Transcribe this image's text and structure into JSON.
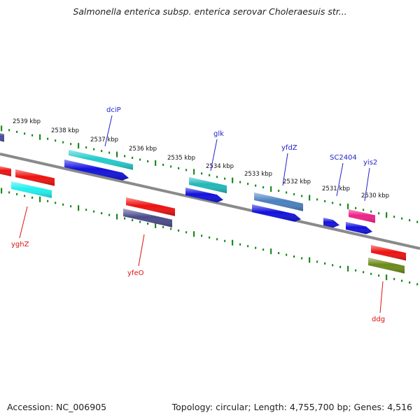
{
  "header": {
    "title": "Salmonella enterica subsp. enterica serovar Choleraesuis str..."
  },
  "footer": {
    "accession": "Accession: NC_006905",
    "topology": "Topology: circular; Length: 4,755,700 bp; Genes: 4,516"
  },
  "colors": {
    "backbone": "#8a8a8a",
    "tick_track": "#1f8a1f",
    "forward_label": "#2222cc",
    "reverse_label": "#dd1111"
  },
  "ruler": [
    {
      "label": "2539 kbp"
    },
    {
      "label": "2538 kbp"
    },
    {
      "label": "2537 kbp"
    },
    {
      "label": "2536 kbp"
    },
    {
      "label": "2535 kbp"
    },
    {
      "label": "2534 kbp"
    },
    {
      "label": "2533 kbp"
    },
    {
      "label": "2532 kbp"
    },
    {
      "label": "2531 kbp"
    },
    {
      "label": "2530 kbp"
    }
  ],
  "labels": {
    "forward": [
      {
        "name": "dciP"
      },
      {
        "name": "glk"
      },
      {
        "name": "yfdZ"
      },
      {
        "name": "SC2404"
      },
      {
        "name": "yis2"
      }
    ],
    "reverse": [
      {
        "name": "yghZ"
      },
      {
        "name": "yfeO"
      },
      {
        "name": "ddg"
      }
    ]
  },
  "features": [
    {
      "color": "#4a4a9a",
      "strand": "+"
    },
    {
      "color": "#22cccc",
      "strand": "+"
    },
    {
      "color": "#1111dd",
      "strand": "+"
    },
    {
      "color": "#22b8b8",
      "strand": "+"
    },
    {
      "color": "#1111dd",
      "strand": "+"
    },
    {
      "color": "#4a7fbf",
      "strand": "+"
    },
    {
      "color": "#1111dd",
      "strand": "+"
    },
    {
      "color": "#1111dd",
      "strand": "+"
    },
    {
      "color": "#1111dd",
      "strand": "+"
    },
    {
      "color": "#ee2288",
      "strand": "+"
    },
    {
      "color": "#ee1111",
      "strand": "-"
    },
    {
      "color": "#ee1111",
      "strand": "-"
    },
    {
      "color": "#22eeee",
      "strand": "-"
    },
    {
      "color": "#ee1111",
      "strand": "-"
    },
    {
      "color": "#4a4a8a",
      "strand": "-"
    },
    {
      "color": "#ee1111",
      "strand": "-"
    },
    {
      "color": "#6b8a1a",
      "strand": "-"
    }
  ]
}
